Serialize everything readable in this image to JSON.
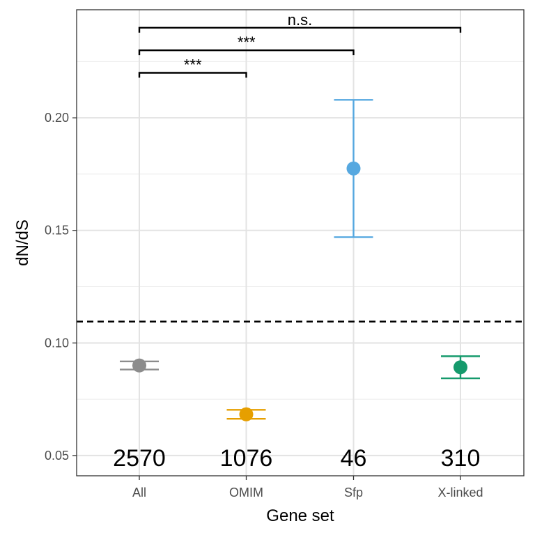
{
  "chart_data": {
    "type": "scatter",
    "xlabel": "Gene set",
    "ylabel": "dN/dS",
    "categories": [
      "All",
      "OMIM",
      "Sfp",
      "X-linked"
    ],
    "ylim": [
      0.041,
      0.248
    ],
    "yticks": [
      0.05,
      0.1,
      0.15,
      0.2
    ],
    "ytick_labels": [
      "0.05",
      "0.10",
      "0.15",
      "0.20"
    ],
    "grid": true,
    "reference_line": 0.1095,
    "points": [
      {
        "category": "All",
        "value": 0.09,
        "lower": 0.0882,
        "upper": 0.0918,
        "count": "2570",
        "color": "#8c8c8c"
      },
      {
        "category": "OMIM",
        "value": 0.0683,
        "lower": 0.0663,
        "upper": 0.0703,
        "count": "1076",
        "color": "#e69f00"
      },
      {
        "category": "Sfp",
        "value": 0.1775,
        "lower": 0.147,
        "upper": 0.208,
        "count": "46",
        "color": "#56a8e0"
      },
      {
        "category": "X-linked",
        "value": 0.0892,
        "lower": 0.0843,
        "upper": 0.0941,
        "count": "310",
        "color": "#159a6c"
      }
    ],
    "comparisons": [
      {
        "from": "All",
        "to": "OMIM",
        "y": 0.22,
        "label": "***"
      },
      {
        "from": "All",
        "to": "Sfp",
        "y": 0.23,
        "label": "***"
      },
      {
        "from": "All",
        "to": "X-linked",
        "y": 0.24,
        "label": "n.s."
      }
    ]
  }
}
